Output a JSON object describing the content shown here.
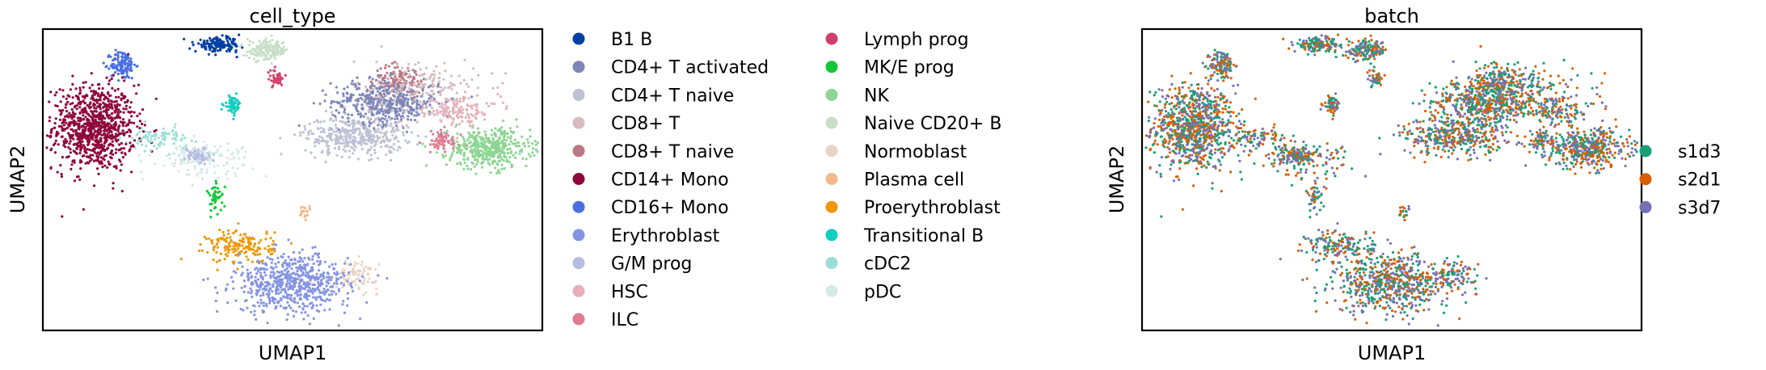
{
  "chart_data": [
    {
      "type": "scatter",
      "title": "cell_type",
      "xlabel": "UMAP1",
      "ylabel": "UMAP2",
      "grid": false,
      "legend_position": "right",
      "xlim": [
        -8,
        16
      ],
      "ylim": [
        -10,
        11
      ],
      "legend": [
        {
          "label": "B1 B",
          "color": "#023fa5"
        },
        {
          "label": "CD4+ T activated",
          "color": "#7d87b9"
        },
        {
          "label": "CD4+ T naive",
          "color": "#bec1d4"
        },
        {
          "label": "CD8+ T",
          "color": "#d6bcc0"
        },
        {
          "label": "CD8+ T naive",
          "color": "#bb7784"
        },
        {
          "label": "CD14+ Mono",
          "color": "#8e063b"
        },
        {
          "label": "CD16+ Mono",
          "color": "#4a6fe3"
        },
        {
          "label": "Erythroblast",
          "color": "#8595e1"
        },
        {
          "label": "G/M prog",
          "color": "#b5bbe3"
        },
        {
          "label": "HSC",
          "color": "#e6afb9"
        },
        {
          "label": "ILC",
          "color": "#e07b91"
        },
        {
          "label": "Lymph prog",
          "color": "#d33f6a"
        },
        {
          "label": "MK/E prog",
          "color": "#11c638"
        },
        {
          "label": "NK",
          "color": "#8dd593"
        },
        {
          "label": "Naive CD20+ B",
          "color": "#c6dec7"
        },
        {
          "label": "Normoblast",
          "color": "#ead3c6"
        },
        {
          "label": "Plasma cell",
          "color": "#f0b98d"
        },
        {
          "label": "Proerythroblast",
          "color": "#ef9708"
        },
        {
          "label": "Transitional B",
          "color": "#0fcfc0"
        },
        {
          "label": "cDC2",
          "color": "#9cded6"
        },
        {
          "label": "pDC",
          "color": "#d5eae7"
        }
      ],
      "clusters": [
        {
          "label": "CD14+ Mono",
          "x": -5.6,
          "y": 4.2,
          "sx": 1.0,
          "sy": 1.5,
          "n": 900
        },
        {
          "label": "CD16+ Mono",
          "x": -4.2,
          "y": 8.6,
          "sx": 0.3,
          "sy": 0.5,
          "n": 120
        },
        {
          "label": "CD4+ T activated",
          "x": 8.5,
          "y": 6.0,
          "sx": 1.3,
          "sy": 0.8,
          "n": 450
        },
        {
          "label": "CD4+ T naive",
          "x": 7.0,
          "y": 3.6,
          "sx": 1.2,
          "sy": 0.7,
          "n": 380
        },
        {
          "label": "CD8+ T",
          "x": 10.0,
          "y": 6.6,
          "sx": 1.5,
          "sy": 1.2,
          "n": 260
        },
        {
          "label": "CD8+ T naive",
          "x": 9.2,
          "y": 7.6,
          "sx": 0.6,
          "sy": 0.5,
          "n": 100
        },
        {
          "label": "NK",
          "x": 13.5,
          "y": 2.7,
          "sx": 1.0,
          "sy": 0.7,
          "n": 420
        },
        {
          "label": "ILC",
          "x": 11.2,
          "y": 3.2,
          "sx": 0.5,
          "sy": 0.4,
          "n": 70
        },
        {
          "label": "HSC",
          "x": 12.2,
          "y": 5.4,
          "sx": 0.9,
          "sy": 0.5,
          "n": 110
        },
        {
          "label": "B1 B",
          "x": 0.4,
          "y": 10.0,
          "sx": 0.55,
          "sy": 0.25,
          "n": 150
        },
        {
          "label": "Naive CD20+ B",
          "x": 2.8,
          "y": 9.6,
          "sx": 0.5,
          "sy": 0.35,
          "n": 150
        },
        {
          "label": "Transitional B",
          "x": 1.1,
          "y": 5.8,
          "sx": 0.2,
          "sy": 0.3,
          "n": 60
        },
        {
          "label": "Lymph prog",
          "x": 3.2,
          "y": 7.6,
          "sx": 0.2,
          "sy": 0.3,
          "n": 40
        },
        {
          "label": "cDC2",
          "x": -2.5,
          "y": 3.4,
          "sx": 0.7,
          "sy": 0.4,
          "n": 90
        },
        {
          "label": "pDC",
          "x": -0.4,
          "y": 2.0,
          "sx": 1.2,
          "sy": 0.6,
          "n": 140
        },
        {
          "label": "G/M prog",
          "x": -0.6,
          "y": 2.2,
          "sx": 0.3,
          "sy": 0.3,
          "n": 80
        },
        {
          "label": "MK/E prog",
          "x": 0.3,
          "y": -0.8,
          "sx": 0.2,
          "sy": 0.5,
          "n": 45
        },
        {
          "label": "Proerythroblast",
          "x": 1.5,
          "y": -4.2,
          "sx": 0.8,
          "sy": 0.6,
          "n": 170
        },
        {
          "label": "Erythroblast",
          "x": 4.0,
          "y": -6.8,
          "sx": 1.4,
          "sy": 1.0,
          "n": 650
        },
        {
          "label": "Normoblast",
          "x": 7.1,
          "y": -6.2,
          "sx": 0.5,
          "sy": 0.5,
          "n": 90
        },
        {
          "label": "Plasma cell",
          "x": 4.6,
          "y": -1.8,
          "sx": 0.2,
          "sy": 0.2,
          "n": 20
        }
      ]
    },
    {
      "type": "scatter",
      "title": "batch",
      "xlabel": "UMAP1",
      "ylabel": "UMAP2",
      "grid": false,
      "legend_position": "right",
      "xlim": [
        -8,
        16
      ],
      "ylim": [
        -10,
        11
      ],
      "legend": [
        {
          "label": "s1d3",
          "color": "#1b9e77"
        },
        {
          "label": "s2d1",
          "color": "#d95f02"
        },
        {
          "label": "s3d7",
          "color": "#7570b3"
        }
      ]
    }
  ]
}
